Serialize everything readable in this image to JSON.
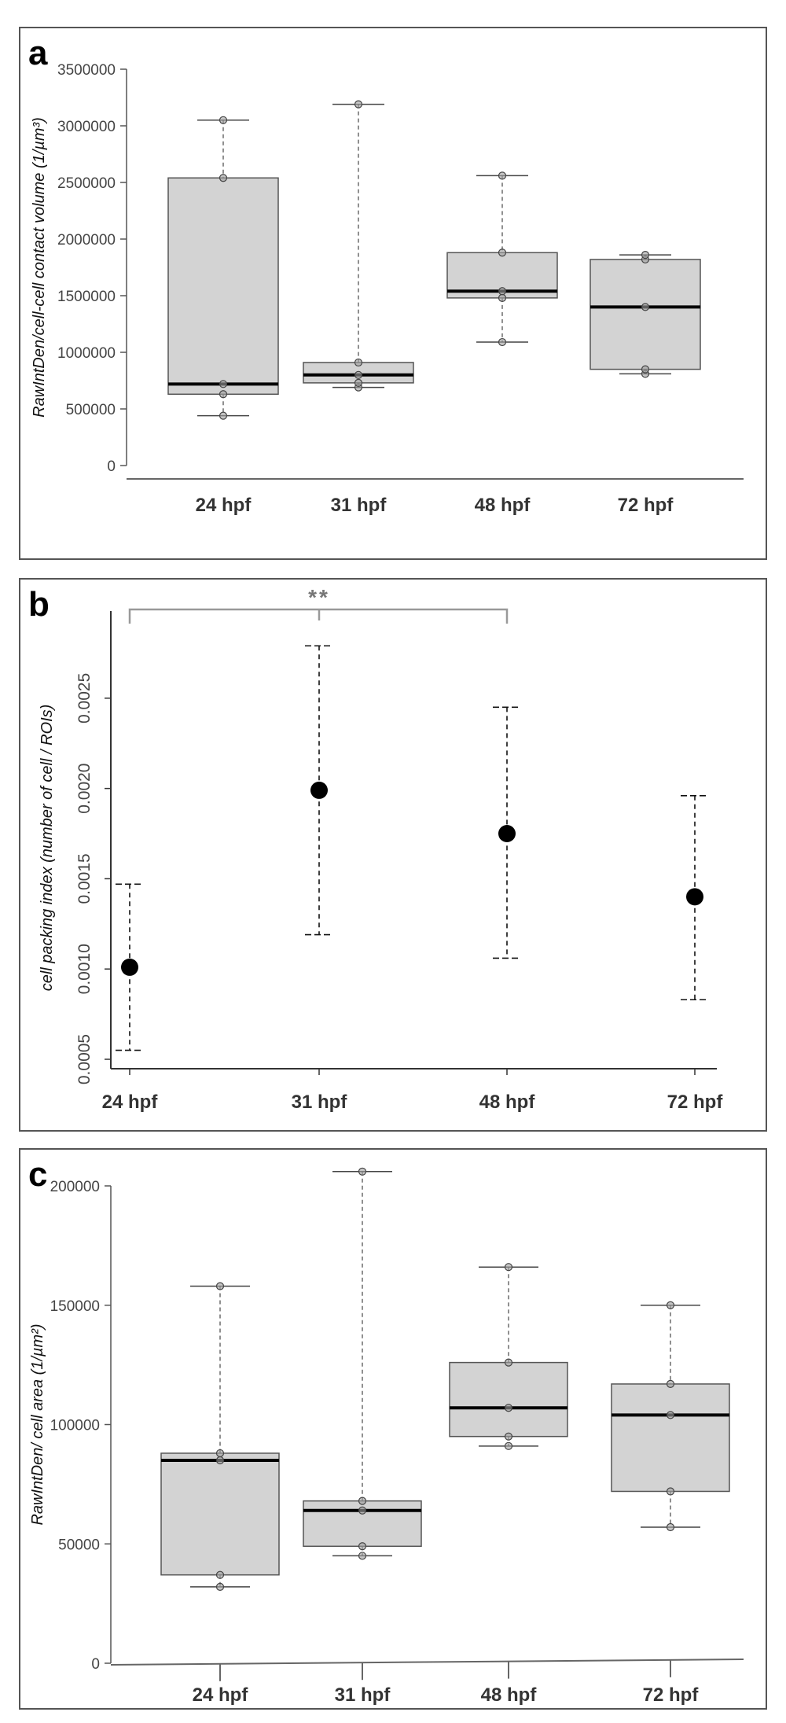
{
  "chart_data": [
    {
      "type": "box",
      "panel_label": "a",
      "ylabel": "RawIntDen/cell-cell contact volume (1/µm³)",
      "ylim": [
        0,
        3500000
      ],
      "yticks": [
        "0",
        "500000",
        "1000000",
        "1500000",
        "2000000",
        "2500000",
        "3000000",
        "3500000"
      ],
      "categories": [
        "24 hpf",
        "31 hpf",
        "48 hpf",
        "72 hpf"
      ],
      "boxes": [
        {
          "min": 440000,
          "q1": 630000,
          "median": 720000,
          "q3": 2540000,
          "max": 3050000,
          "points": [
            440000,
            630000,
            720000,
            2540000,
            3050000
          ]
        },
        {
          "min": 690000,
          "q1": 730000,
          "median": 800000,
          "q3": 910000,
          "max": 3190000,
          "points": [
            690000,
            730000,
            800000,
            910000,
            3190000
          ]
        },
        {
          "min": 1090000,
          "q1": 1480000,
          "median": 1540000,
          "q3": 1880000,
          "max": 2560000,
          "points": [
            1090000,
            1480000,
            1540000,
            1880000,
            2560000
          ]
        },
        {
          "min": 810000,
          "q1": 850000,
          "median": 1400000,
          "q3": 1820000,
          "max": 1860000,
          "points": [
            810000,
            850000,
            1400000,
            1820000,
            1860000
          ]
        }
      ]
    },
    {
      "type": "errorbar",
      "panel_label": "b",
      "ylabel": "cell packing index (number of cell / ROIs)",
      "ylim": [
        0.0005,
        0.0029
      ],
      "yticks": [
        "0.0005",
        "0.0010",
        "0.0015",
        "0.0020",
        "0.0025"
      ],
      "categories": [
        "24 hpf",
        "31 hpf",
        "48 hpf",
        "72 hpf"
      ],
      "points": [
        {
          "mean": 0.00101,
          "low": 0.00055,
          "high": 0.00147
        },
        {
          "mean": 0.00199,
          "low": 0.00119,
          "high": 0.00279
        },
        {
          "mean": 0.00175,
          "low": 0.00106,
          "high": 0.00245
        },
        {
          "mean": 0.0014,
          "low": 0.00083,
          "high": 0.00196
        }
      ],
      "significance": {
        "label": "**",
        "from": "24 hpf",
        "to": "48 hpf"
      }
    },
    {
      "type": "box",
      "panel_label": "c",
      "ylabel": "RawIntDen/ cell area  (1/µm²)",
      "ylim": [
        0,
        200000
      ],
      "yticks": [
        "0",
        "50000",
        "100000",
        "150000",
        "200000"
      ],
      "categories": [
        "24 hpf",
        "31 hpf",
        "48 hpf",
        "72 hpf"
      ],
      "boxes": [
        {
          "min": 32000,
          "q1": 37000,
          "median": 85000,
          "q3": 88000,
          "max": 158000,
          "points": [
            32000,
            37000,
            85000,
            88000,
            158000
          ]
        },
        {
          "min": 45000,
          "q1": 49000,
          "median": 64000,
          "q3": 68000,
          "max": 206000,
          "points": [
            45000,
            49000,
            64000,
            68000,
            206000
          ]
        },
        {
          "min": 91000,
          "q1": 95000,
          "median": 107000,
          "q3": 126000,
          "max": 166000,
          "points": [
            91000,
            95000,
            107000,
            126000,
            166000
          ]
        },
        {
          "min": 57000,
          "q1": 72000,
          "median": 104000,
          "q3": 117000,
          "max": 150000,
          "points": [
            57000,
            72000,
            104000,
            117000,
            150000
          ]
        }
      ]
    }
  ]
}
